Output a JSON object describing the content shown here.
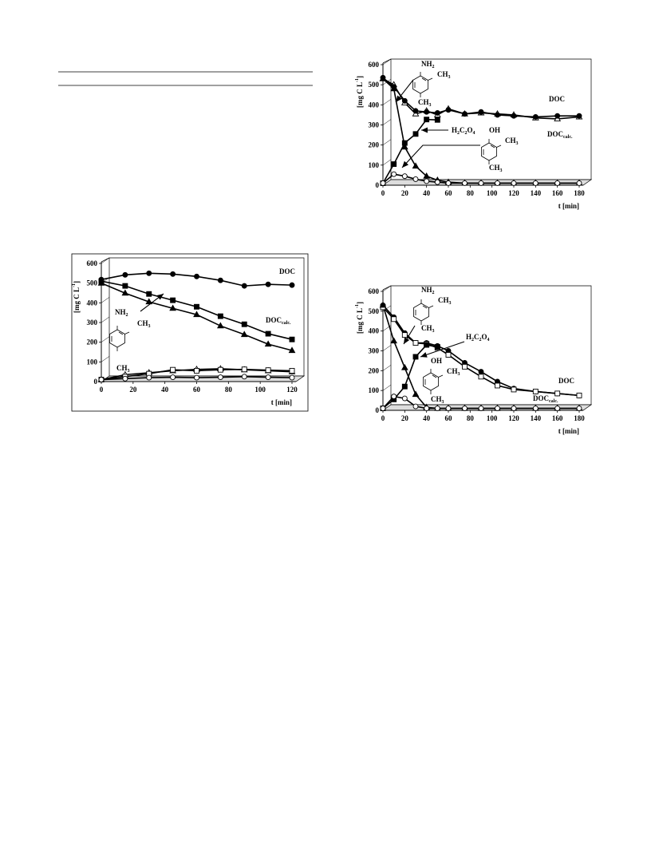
{
  "chart_data": [
    {
      "type": "line",
      "ylabel": {
        "base": "[mg C L",
        "sup": "-1",
        "close": "]"
      },
      "xlabel": "t [min]",
      "x": [
        0,
        15,
        30,
        45,
        60,
        75,
        90,
        105,
        120
      ],
      "xlim": [
        0,
        120
      ],
      "xticks": [
        0,
        20,
        40,
        60,
        80,
        100,
        120
      ],
      "ylim": [
        0,
        600
      ],
      "yticks": [
        0,
        100,
        200,
        300,
        400,
        500,
        600
      ],
      "series": [
        {
          "marker": "circle",
          "filled": true,
          "color": "#000",
          "values": [
            518,
            542,
            550,
            546,
            534,
            514,
            486,
            494,
            490
          ]
        },
        {
          "marker": "square",
          "filled": true,
          "color": "#000",
          "values": [
            510,
            486,
            445,
            413,
            380,
            332,
            291,
            243,
            214
          ]
        },
        {
          "marker": "triangle",
          "filled": true,
          "color": "#000",
          "values": [
            500,
            449,
            405,
            372,
            340,
            283,
            239,
            190,
            158
          ]
        },
        {
          "marker": "triangle",
          "filled": false,
          "color": "#000",
          "values": [
            10,
            35,
            45,
            55,
            62,
            65,
            60,
            55,
            50
          ]
        },
        {
          "marker": "square",
          "filled": false,
          "color": "#000",
          "values": [
            10,
            25,
            40,
            60,
            55,
            60,
            62,
            58,
            55
          ]
        },
        {
          "marker": "circle",
          "filled": false,
          "color": "#000",
          "values": [
            10,
            15,
            20,
            22,
            20,
            22,
            25,
            22,
            20
          ]
        }
      ],
      "annotations": [
        [
          "DOC"
        ],
        [
          "DOC",
          "calc."
        ],
        [
          "NH",
          "2"
        ],
        [
          "CH",
          "3"
        ],
        [
          "CH",
          "3"
        ]
      ]
    },
    {
      "type": "line",
      "ylabel": {
        "base": "[mg C L",
        "sup": "-1",
        "close": "]"
      },
      "xlabel": "t [min]",
      "x": [
        0,
        10,
        20,
        30,
        40,
        50,
        60,
        75,
        90,
        105,
        120,
        140,
        160,
        180
      ],
      "xlim": [
        0,
        180
      ],
      "xticks": [
        0,
        20,
        40,
        60,
        80,
        100,
        120,
        140,
        160,
        180
      ],
      "ylim": [
        0,
        600
      ],
      "yticks": [
        0,
        100,
        200,
        300,
        400,
        500,
        600
      ],
      "series": [
        {
          "marker": "triangle",
          "filled": false,
          "color": "#000",
          "values": [
            530,
            500,
            410,
            355,
            370,
            350,
            380,
            355,
            360,
            355,
            350,
            335,
            330,
            340
          ]
        },
        {
          "marker": "circle",
          "filled": true,
          "color": "#000",
          "values": [
            535,
            490,
            420,
            370,
            365,
            360,
            375,
            355,
            365,
            350,
            345,
            340,
            345,
            345
          ]
        },
        {
          "marker": "square",
          "filled": true,
          "color": "#000",
          "values": [
            10,
            105,
            210,
            255,
            327,
            325,
            null,
            null,
            null,
            null,
            null,
            null,
            null,
            null
          ]
        },
        {
          "marker": "triangle",
          "filled": true,
          "color": "#000",
          "values": [
            530,
            480,
            190,
            95,
            45,
            25,
            15,
            10,
            10,
            10,
            10,
            10,
            10,
            10
          ]
        },
        {
          "marker": "circle",
          "filled": false,
          "color": "#000",
          "values": [
            10,
            55,
            45,
            30,
            20,
            15,
            10,
            10,
            10,
            10,
            10,
            10,
            10,
            10
          ]
        }
      ],
      "annotations": [
        [
          "DOC"
        ],
        [
          "DOC",
          "calc."
        ],
        [
          "H",
          "2",
          "C",
          "2",
          "O",
          "4"
        ],
        [
          "NH",
          "2"
        ],
        [
          "CH",
          "3"
        ],
        [
          "CH",
          "3"
        ],
        [
          "OH"
        ],
        [
          "CH",
          "3"
        ],
        [
          "CH",
          "3"
        ]
      ]
    },
    {
      "type": "line",
      "ylabel": {
        "base": "[mg C L",
        "sup": "-1",
        "close": "]"
      },
      "xlabel": "t [min]",
      "x": [
        0,
        10,
        20,
        30,
        40,
        50,
        60,
        75,
        90,
        105,
        120,
        140,
        160,
        180
      ],
      "xlim": [
        0,
        180
      ],
      "xticks": [
        0,
        20,
        40,
        60,
        80,
        100,
        120,
        140,
        160,
        180
      ],
      "ylim": [
        0,
        600
      ],
      "yticks": [
        0,
        100,
        200,
        300,
        400,
        500,
        600
      ],
      "series": [
        {
          "marker": "circle",
          "filled": true,
          "color": "#000",
          "values": [
            530,
            470,
            390,
            340,
            340,
            325,
            300,
            240,
            195,
            145,
            110,
            95,
            85,
            75
          ]
        },
        {
          "marker": "square",
          "filled": false,
          "color": "#000",
          "values": [
            520,
            460,
            380,
            340,
            335,
            315,
            280,
            220,
            170,
            125,
            105,
            95,
            85,
            75
          ]
        },
        {
          "marker": "square",
          "filled": true,
          "color": "#000",
          "values": [
            10,
            55,
            120,
            270,
            330,
            320,
            null,
            null,
            null,
            null,
            null,
            null,
            null,
            null
          ]
        },
        {
          "marker": "triangle",
          "filled": true,
          "color": "#000",
          "values": [
            530,
            350,
            215,
            80,
            15,
            10,
            10,
            10,
            10,
            10,
            10,
            10,
            10,
            10
          ]
        },
        {
          "marker": "circle",
          "filled": false,
          "color": "#000",
          "values": [
            10,
            70,
            60,
            20,
            10,
            10,
            10,
            10,
            10,
            10,
            10,
            10,
            10,
            10
          ]
        }
      ],
      "annotations": [
        [
          "DOC"
        ],
        [
          "DOC",
          "calc."
        ],
        [
          "H",
          "2",
          "C",
          "2",
          "O",
          "4"
        ],
        [
          "NH",
          "2"
        ],
        [
          "CH",
          "3"
        ],
        [
          "CH",
          "3"
        ],
        [
          "OH"
        ],
        [
          "CH",
          "3"
        ],
        [
          "CH",
          "3"
        ]
      ]
    }
  ]
}
